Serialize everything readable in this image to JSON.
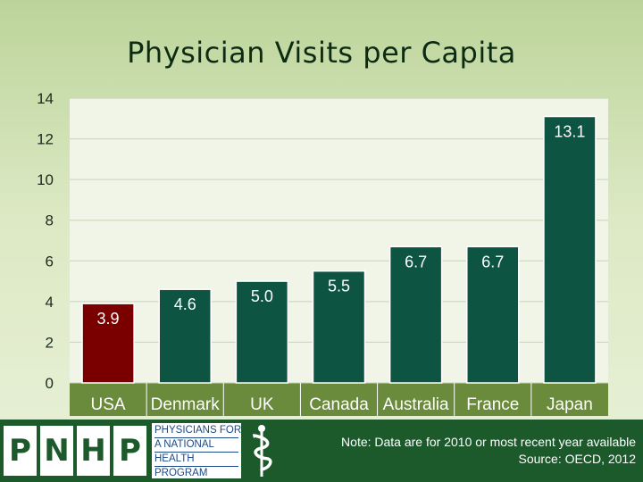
{
  "chart_data": {
    "type": "bar",
    "title": "Physician Visits per Capita",
    "categories": [
      "USA",
      "Denmark",
      "UK",
      "Canada",
      "Australia",
      "France",
      "Japan"
    ],
    "values": [
      3.9,
      4.6,
      5.0,
      5.5,
      6.7,
      6.7,
      13.1
    ],
    "value_labels": [
      "3.9",
      "4.6",
      "5.0",
      "5.5",
      "6.7",
      "6.7",
      "13.1"
    ],
    "ylim": [
      0,
      14
    ],
    "yticks": [
      0,
      2,
      4,
      6,
      8,
      10,
      12,
      14
    ],
    "grid": true,
    "xlabel": "",
    "ylabel": "",
    "colors": {
      "highlight_bar": "#7a0000",
      "bar": "#0d5542",
      "grid": "#c8d3b8",
      "plot_bg": "#f1f5e7",
      "category_band": "#6a8a3c"
    }
  },
  "logo": {
    "letters": [
      "P",
      "N",
      "H",
      "P"
    ],
    "tagline": [
      "PHYSICIANS FOR",
      "A NATIONAL",
      "HEALTH",
      "PROGRAM"
    ],
    "emblem": "caduceus-icon"
  },
  "footer": {
    "note": "Note: Data are for 2010 or most recent year available",
    "source": "Source: OECD, 2012"
  }
}
